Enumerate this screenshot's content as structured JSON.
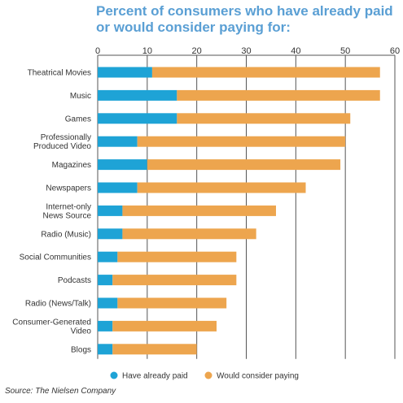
{
  "chart_data": {
    "type": "bar",
    "orientation": "horizontal",
    "stacked": true,
    "title": "Percent of consumers who have already paid or would consider paying for:",
    "title_lines": [
      "Percent of consumers who have already paid",
      "or would consider paying for:"
    ],
    "categories": [
      [
        "Theatrical Movies"
      ],
      [
        "Music"
      ],
      [
        "Games"
      ],
      [
        "Professionally",
        "Produced Video"
      ],
      [
        "Magazines"
      ],
      [
        "Newspapers"
      ],
      [
        "Internet-only",
        "News Source"
      ],
      [
        "Radio (Music)"
      ],
      [
        "Social Communities"
      ],
      [
        "Podcasts"
      ],
      [
        "Radio (News/Talk)"
      ],
      [
        "Consumer-Generated",
        "Video"
      ],
      [
        "Blogs"
      ]
    ],
    "series": [
      {
        "name": "Have already paid",
        "color": "#1ea3d6",
        "values": [
          11,
          16,
          16,
          8,
          10,
          8,
          5,
          5,
          4,
          3,
          4,
          3,
          3
        ]
      },
      {
        "name": "Would consider paying",
        "color": "#eda54e",
        "values": [
          46,
          41,
          35,
          42,
          39,
          34,
          31,
          27,
          24,
          25,
          22,
          21,
          17
        ]
      }
    ],
    "xlim": [
      0,
      60
    ],
    "xticks": [
      "0",
      "10",
      "20",
      "30",
      "40",
      "50",
      "60"
    ],
    "xaxis_position": "top",
    "grid": true,
    "legend_position": "bottom"
  },
  "source": "Source: The Nielsen Company"
}
